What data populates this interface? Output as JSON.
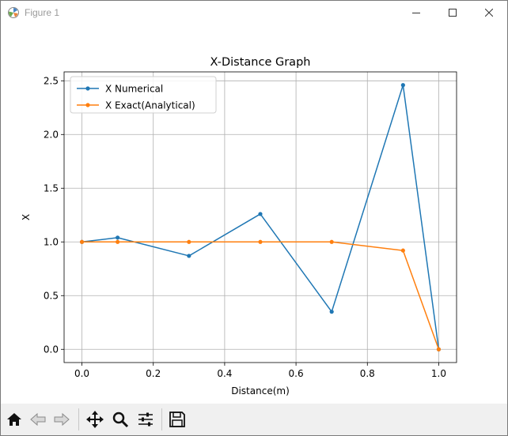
{
  "window": {
    "title": "Figure 1"
  },
  "toolbar": {
    "buttons": [
      "home-icon",
      "back-icon",
      "forward-icon",
      "pan-icon",
      "zoom-icon",
      "configure-subplots-icon",
      "save-icon"
    ]
  },
  "colors": {
    "series_numerical": "#1f77b4",
    "series_exact": "#ff7f0e",
    "grid": "#b0b0b0"
  },
  "chart_data": {
    "type": "line",
    "title": "X-Distance Graph",
    "xlabel": "Distance(m)",
    "ylabel": "X",
    "xlim": [
      -0.05,
      1.05
    ],
    "ylim": [
      -0.123,
      2.583
    ],
    "xticks": [
      0.0,
      0.2,
      0.4,
      0.6,
      0.8,
      1.0
    ],
    "xtick_labels": [
      "0.0",
      "0.2",
      "0.4",
      "0.6",
      "0.8",
      "1.0"
    ],
    "yticks": [
      0.0,
      0.5,
      1.0,
      1.5,
      2.0,
      2.5
    ],
    "ytick_labels": [
      "0.0",
      "0.5",
      "1.0",
      "1.5",
      "2.0",
      "2.5"
    ],
    "grid": true,
    "legend_position": "top-left",
    "series": [
      {
        "name": "X Numerical",
        "color": "#1f77b4",
        "x": [
          0.0,
          0.1,
          0.3,
          0.5,
          0.7,
          0.9,
          1.0
        ],
        "y": [
          1.0,
          1.04,
          0.87,
          1.26,
          0.35,
          2.46,
          0.0
        ]
      },
      {
        "name": "X Exact(Analytical)",
        "color": "#ff7f0e",
        "x": [
          0.0,
          0.1,
          0.3,
          0.5,
          0.7,
          0.9,
          1.0
        ],
        "y": [
          1.0,
          1.0,
          1.0,
          1.0,
          1.0,
          0.92,
          0.0
        ]
      }
    ]
  }
}
